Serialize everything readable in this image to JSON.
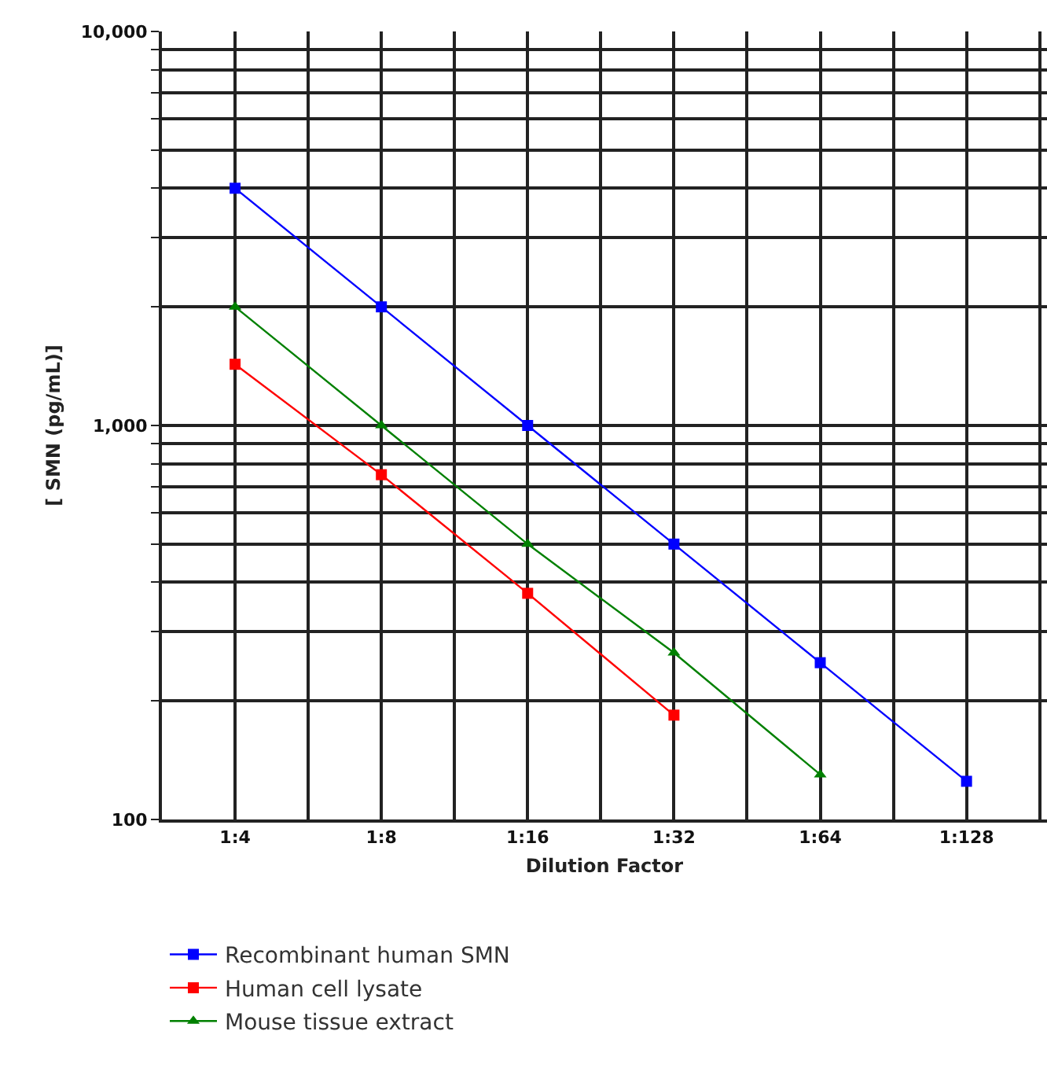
{
  "chart_data": {
    "type": "line",
    "xlabel": "Dilution Factor",
    "ylabel": "[ SMN (pg/mL)]",
    "categories": [
      null,
      "1:4",
      null,
      "1:8",
      null,
      "1:16",
      null,
      "1:32",
      null,
      "1:64",
      null,
      "1:128",
      null
    ],
    "log": "y",
    "ylim": [
      100,
      10000
    ],
    "yticks": [
      100,
      {
        "value": 200,
        "label": null
      },
      {
        "value": 300,
        "label": null
      },
      {
        "value": 400,
        "label": null
      },
      {
        "value": 500,
        "label": null
      },
      {
        "value": 600,
        "label": null
      },
      {
        "value": 700,
        "label": null
      },
      {
        "value": 800,
        "label": null
      },
      {
        "value": 900,
        "label": null
      },
      {
        "value": 1000,
        "label": "1,000"
      },
      {
        "value": 2000,
        "label": null
      },
      {
        "value": 3000,
        "label": null
      },
      {
        "value": 4000,
        "label": null
      },
      {
        "value": 5000,
        "label": null
      },
      {
        "value": 6000,
        "label": null
      },
      {
        "value": 7000,
        "label": null
      },
      {
        "value": 8000,
        "label": null
      },
      {
        "value": 9000,
        "label": null
      },
      {
        "value": 10000,
        "label": "10,000"
      }
    ],
    "grid": true,
    "legend": "bottom",
    "line_style": "solid",
    "series": [
      {
        "name": "Recombinant human SMN",
        "color": "#0000ff",
        "marker": "square",
        "values": [
          null,
          4000,
          null,
          2000,
          null,
          1000,
          null,
          500,
          null,
          250,
          null,
          125,
          null
        ]
      },
      {
        "name": "Human cell lysate",
        "color": "#ff0000",
        "marker": "square",
        "values": [
          null,
          1430,
          null,
          750,
          null,
          375,
          null,
          184,
          null,
          null,
          null,
          null,
          null
        ]
      },
      {
        "name": "Mouse tissue extract",
        "color": "#008000",
        "marker": "triangle",
        "values": [
          null,
          2000,
          null,
          1000,
          null,
          500,
          null,
          265,
          null,
          130,
          null,
          null,
          null
        ]
      }
    ]
  }
}
